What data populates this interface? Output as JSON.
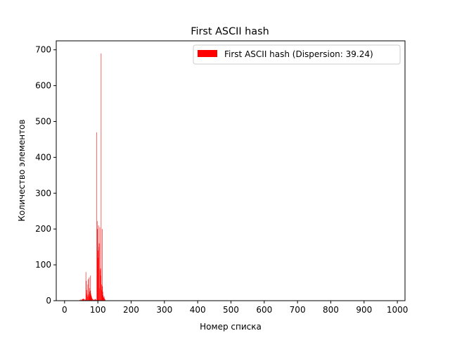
{
  "chart_data": {
    "type": "bar",
    "title": "First ASCII hash",
    "xlabel": "Номер списка",
    "ylabel": "Количество элементов",
    "xlim": [
      -25,
      1023
    ],
    "ylim": [
      0,
      725
    ],
    "x_ticks": [
      "0",
      "100",
      "200",
      "300",
      "400",
      "500",
      "600",
      "700",
      "800",
      "900",
      "1000"
    ],
    "y_ticks": [
      "0",
      "100",
      "200",
      "300",
      "400",
      "500",
      "600",
      "700"
    ],
    "grid": false,
    "legend_position": "top-right",
    "series": [
      {
        "name": "First ASCII hash (Dispersion: 39.24)",
        "color": "#ff0000",
        "x": [
          46,
          48,
          50,
          52,
          53,
          54,
          55,
          56,
          57,
          58,
          59,
          60,
          62,
          63,
          64,
          65,
          66,
          67,
          68,
          69,
          70,
          71,
          72,
          73,
          74,
          75,
          76,
          77,
          78,
          79,
          80,
          81,
          82,
          83,
          84,
          85,
          86,
          87,
          88,
          89,
          90,
          91,
          92,
          93,
          94,
          95,
          97,
          98,
          99,
          100,
          101,
          102,
          103,
          104,
          105,
          106,
          107,
          108,
          109,
          110,
          111,
          112,
          113,
          114,
          115,
          116,
          117,
          118,
          119,
          120,
          121,
          122
        ],
        "values": [
          2,
          3,
          2,
          4,
          3,
          5,
          4,
          6,
          3,
          4,
          5,
          3,
          2,
          4,
          80,
          55,
          20,
          30,
          15,
          10,
          45,
          60,
          18,
          12,
          65,
          35,
          25,
          28,
          70,
          20,
          15,
          8,
          12,
          6,
          5,
          4,
          3,
          2,
          2,
          3,
          2,
          4,
          5,
          3,
          2,
          3,
          470,
          222,
          200,
          140,
          120,
          210,
          150,
          160,
          35,
          205,
          85,
          90,
          70,
          690,
          30,
          45,
          200,
          40,
          25,
          15,
          10,
          8,
          12,
          6,
          4,
          3
        ]
      }
    ]
  }
}
